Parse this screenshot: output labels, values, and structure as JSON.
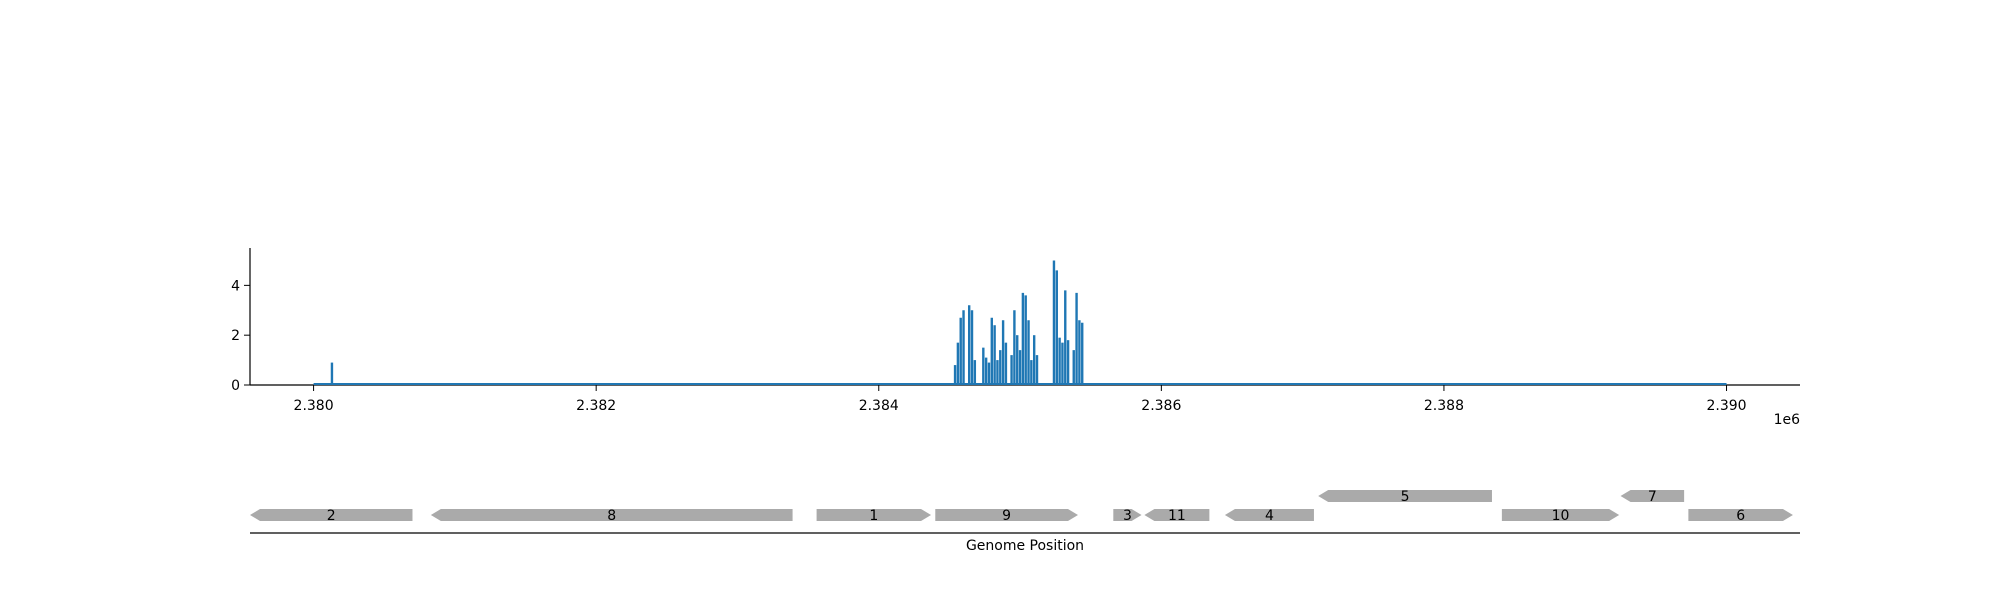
{
  "chart_data": [
    {
      "type": "line",
      "title": "",
      "xlabel": "",
      "ylabel": "",
      "x_offset_label": "1e6",
      "xlim": [
        2.37955,
        2.39052
      ],
      "ylim": [
        0,
        5.5
      ],
      "x_ticks": [
        2.38,
        2.382,
        2.384,
        2.386,
        2.388,
        2.39
      ],
      "x_tick_labels": [
        "2.380",
        "2.382",
        "2.384",
        "2.386",
        "2.388",
        "2.390"
      ],
      "y_ticks": [
        0,
        2,
        4
      ],
      "y_tick_labels": [
        "0",
        "2",
        "4"
      ],
      "grid": false,
      "color": "#1f77b4",
      "baseline_range": [
        2.38,
        2.39
      ],
      "series": [
        {
          "x": [
            2.38013,
            2.38454,
            2.38456,
            2.38458,
            2.3846,
            2.38464,
            2.38466,
            2.38468,
            2.38474,
            2.38476,
            2.38478,
            2.3848,
            2.38482,
            2.38484,
            2.38486,
            2.38488,
            2.3849,
            2.38494,
            2.38496,
            2.38498,
            2.385,
            2.38502,
            2.38504,
            2.38506,
            2.38508,
            2.3851,
            2.38512,
            2.38524,
            2.38526,
            2.38528,
            2.3853,
            2.38532,
            2.38534,
            2.38538,
            2.3854,
            2.38542,
            2.38544
          ],
          "y": [
            0.9,
            0.8,
            1.7,
            2.7,
            3.0,
            3.2,
            3.0,
            1.0,
            1.5,
            1.1,
            0.9,
            2.7,
            2.4,
            1.0,
            1.4,
            2.6,
            1.7,
            1.2,
            3.0,
            2.0,
            1.4,
            3.7,
            3.6,
            2.6,
            1.0,
            2.0,
            1.2,
            5.0,
            4.6,
            1.9,
            1.7,
            3.8,
            1.8,
            1.4,
            3.7,
            2.6,
            2.5
          ]
        }
      ]
    },
    {
      "type": "gene-track",
      "xlabel": "Genome Position",
      "color": "#aaaaaa",
      "features": [
        {
          "label": "2",
          "start": 2.37955,
          "end": 2.3807,
          "strand": "-",
          "row": 0
        },
        {
          "label": "8",
          "start": 2.38083,
          "end": 2.38339,
          "strand": "-",
          "row": 0
        },
        {
          "label": "1",
          "start": 2.38356,
          "end": 2.38437,
          "strand": "+",
          "row": 0
        },
        {
          "label": "9",
          "start": 2.3844,
          "end": 2.38541,
          "strand": "+",
          "row": 0
        },
        {
          "label": "3",
          "start": 2.38566,
          "end": 2.38586,
          "strand": "+",
          "row": 0
        },
        {
          "label": "11",
          "start": 2.38588,
          "end": 2.38634,
          "strand": "-",
          "row": 0
        },
        {
          "label": "4",
          "start": 2.38645,
          "end": 2.38708,
          "strand": "-",
          "row": 0
        },
        {
          "label": "5",
          "start": 2.38711,
          "end": 2.38834,
          "strand": "-",
          "row": 1
        },
        {
          "label": "10",
          "start": 2.38841,
          "end": 2.38924,
          "strand": "+",
          "row": 0
        },
        {
          "label": "7",
          "start": 2.38925,
          "end": 2.3897,
          "strand": "-",
          "row": 1
        },
        {
          "label": "6",
          "start": 2.38973,
          "end": 2.39047,
          "strand": "+",
          "row": 0
        }
      ]
    }
  ]
}
